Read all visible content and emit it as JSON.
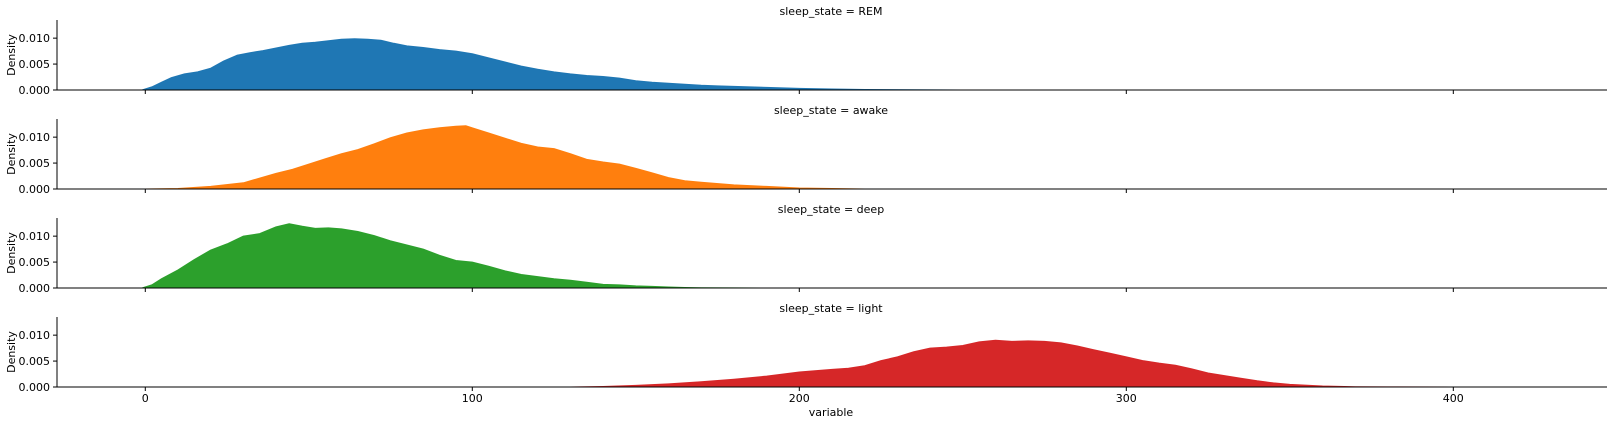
{
  "chart_data": {
    "type": "area",
    "xlabel": "variable",
    "ylabel": "Density",
    "xlim": [
      -27,
      447
    ],
    "ylim": [
      0,
      0.0135
    ],
    "x_ticks": [
      0,
      100,
      200,
      300,
      400
    ],
    "y_ticks": [
      0.0,
      0.005,
      0.01
    ],
    "y_tick_labels": [
      "0.000",
      "0.005",
      "0.010"
    ],
    "series": [
      {
        "name": "sleep_state = REM",
        "color": "#1f77b4",
        "x": [
          -1,
          2,
          5,
          8,
          12,
          16,
          20,
          24,
          28,
          32,
          36,
          40,
          44,
          48,
          52,
          56,
          60,
          64,
          68,
          72,
          76,
          80,
          85,
          90,
          95,
          100,
          105,
          110,
          115,
          120,
          125,
          130,
          135,
          140,
          145,
          150,
          155,
          160,
          165,
          170,
          175,
          180,
          190,
          200,
          210,
          220,
          235,
          250
        ],
        "values": [
          0.0,
          0.0006,
          0.0015,
          0.0024,
          0.0031,
          0.0035,
          0.0042,
          0.0056,
          0.0067,
          0.0072,
          0.0076,
          0.0081,
          0.0086,
          0.009,
          0.0092,
          0.0095,
          0.0098,
          0.0099,
          0.0098,
          0.0096,
          0.009,
          0.0085,
          0.0082,
          0.0078,
          0.0075,
          0.007,
          0.0062,
          0.0054,
          0.0046,
          0.004,
          0.0035,
          0.0031,
          0.0028,
          0.0026,
          0.0023,
          0.0018,
          0.0015,
          0.0013,
          0.0011,
          0.0009,
          0.0008,
          0.0007,
          0.0005,
          0.0003,
          0.0002,
          0.0001,
          3e-05,
          0.0
        ]
      },
      {
        "name": "sleep_state = awake",
        "color": "#ff7f0e",
        "x": [
          0,
          10,
          20,
          30,
          35,
          40,
          45,
          50,
          55,
          60,
          65,
          70,
          75,
          80,
          85,
          90,
          95,
          98,
          100,
          105,
          110,
          115,
          120,
          125,
          130,
          135,
          140,
          145,
          150,
          155,
          160,
          165,
          170,
          180,
          190,
          200,
          210,
          220
        ],
        "values": [
          0.0,
          0.0001,
          0.0005,
          0.0012,
          0.0021,
          0.003,
          0.0038,
          0.0048,
          0.0058,
          0.0068,
          0.0076,
          0.0087,
          0.0099,
          0.0108,
          0.0114,
          0.0118,
          0.0121,
          0.0122,
          0.0118,
          0.0108,
          0.0098,
          0.0088,
          0.0081,
          0.0078,
          0.0068,
          0.0057,
          0.0052,
          0.0048,
          0.004,
          0.0031,
          0.0022,
          0.0016,
          0.0013,
          0.0008,
          0.0005,
          0.0002,
          0.0001,
          0.0
        ]
      },
      {
        "name": "sleep_state = deep",
        "color": "#2ca02c",
        "x": [
          -1,
          2,
          5,
          10,
          15,
          20,
          25,
          30,
          35,
          40,
          44,
          48,
          52,
          56,
          60,
          65,
          70,
          75,
          80,
          85,
          90,
          95,
          100,
          105,
          110,
          115,
          120,
          125,
          130,
          135,
          140,
          145,
          150,
          155,
          160,
          165,
          170,
          180,
          200
        ],
        "values": [
          0.0,
          0.0006,
          0.0018,
          0.0035,
          0.0055,
          0.0073,
          0.0085,
          0.01,
          0.0105,
          0.0118,
          0.0124,
          0.0119,
          0.0115,
          0.0116,
          0.0114,
          0.0109,
          0.0101,
          0.0091,
          0.0083,
          0.0075,
          0.0063,
          0.0053,
          0.005,
          0.0042,
          0.0033,
          0.0026,
          0.0022,
          0.0018,
          0.0015,
          0.0011,
          0.0007,
          0.0006,
          0.0004,
          0.0003,
          0.0002,
          0.0001,
          5e-05,
          2e-05,
          0.0
        ]
      },
      {
        "name": "sleep_state = light",
        "color": "#d62728",
        "x": [
          130,
          140,
          150,
          160,
          170,
          180,
          190,
          200,
          210,
          215,
          220,
          225,
          230,
          235,
          240,
          245,
          250,
          255,
          260,
          265,
          270,
          275,
          280,
          285,
          290,
          295,
          300,
          305,
          310,
          315,
          320,
          325,
          330,
          335,
          340,
          345,
          350,
          360,
          370,
          380,
          400,
          420
        ],
        "values": [
          0.0,
          0.0001,
          0.0003,
          0.0006,
          0.001,
          0.0015,
          0.0021,
          0.0029,
          0.0034,
          0.0036,
          0.0041,
          0.0051,
          0.0058,
          0.0068,
          0.0075,
          0.0077,
          0.008,
          0.0087,
          0.009,
          0.0088,
          0.0089,
          0.0088,
          0.0085,
          0.0079,
          0.0072,
          0.0065,
          0.0058,
          0.0051,
          0.0046,
          0.0042,
          0.0035,
          0.0027,
          0.0022,
          0.0017,
          0.0012,
          0.0008,
          0.0005,
          0.0002,
          5e-05,
          2e-05,
          0.0,
          0.0
        ]
      }
    ]
  }
}
